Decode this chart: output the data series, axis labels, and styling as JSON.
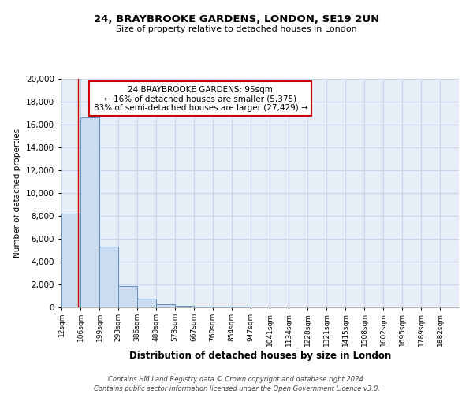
{
  "title": "24, BRAYBROOKE GARDENS, LONDON, SE19 2UN",
  "subtitle": "Size of property relative to detached houses in London",
  "xlabel": "Distribution of detached houses by size in London",
  "ylabel": "Number of detached properties",
  "bar_labels": [
    "12sqm",
    "106sqm",
    "199sqm",
    "293sqm",
    "386sqm",
    "480sqm",
    "573sqm",
    "667sqm",
    "760sqm",
    "854sqm",
    "947sqm",
    "1041sqm",
    "1134sqm",
    "1228sqm",
    "1321sqm",
    "1415sqm",
    "1508sqm",
    "1602sqm",
    "1695sqm",
    "1789sqm",
    "1882sqm"
  ],
  "bar_values": [
    8200,
    16600,
    5300,
    1850,
    750,
    280,
    150,
    90,
    60,
    40,
    0,
    0,
    0,
    0,
    0,
    0,
    0,
    0,
    0,
    0,
    0
  ],
  "bar_color": "#ccdcf0",
  "bar_edge_color": "#6090c0",
  "annotation_text": "24 BRAYBROOKE GARDENS: 95sqm\n← 16% of detached houses are smaller (5,375)\n83% of semi-detached houses are larger (27,429) →",
  "annotation_box_color": "#ffffff",
  "annotation_box_edge": "#cc0000",
  "red_line_x": 95,
  "bin_edges": [
    12,
    106,
    199,
    293,
    386,
    480,
    573,
    667,
    760,
    854,
    947,
    1041,
    1134,
    1228,
    1321,
    1415,
    1508,
    1602,
    1695,
    1789,
    1882
  ],
  "ylim": [
    0,
    20000
  ],
  "yticks": [
    0,
    2000,
    4000,
    6000,
    8000,
    10000,
    12000,
    14000,
    16000,
    18000,
    20000
  ],
  "grid_color": "#c8d4e8",
  "bg_color": "#e8eef8",
  "footer1": "Contains HM Land Registry data © Crown copyright and database right 2024.",
  "footer2": "Contains public sector information licensed under the Open Government Licence v3.0."
}
